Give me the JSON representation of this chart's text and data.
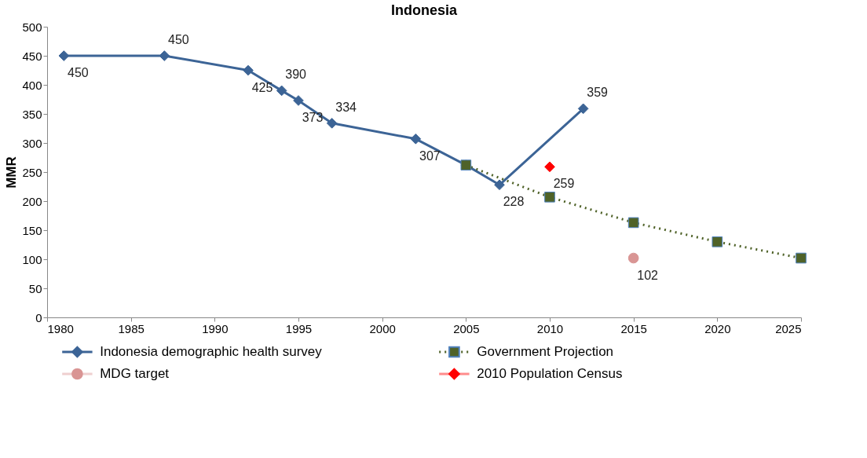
{
  "chart_data": {
    "type": "line",
    "title": "Indonesia",
    "ylabel": "MMR",
    "xlim": [
      1980,
      2025
    ],
    "xticks": [
      1980,
      1985,
      1990,
      1995,
      2000,
      2005,
      2010,
      2015,
      2020,
      2025
    ],
    "ylim": [
      0,
      500
    ],
    "yticks": [
      0,
      50,
      100,
      150,
      200,
      250,
      300,
      350,
      400,
      450,
      500
    ],
    "grid": false,
    "legend": "bottom",
    "series": [
      {
        "name": "Indonesia demographic health survey",
        "color": "#3c6496",
        "marker": "diamond",
        "line_style": "solid",
        "x": [
          1981,
          1987,
          1992,
          1994,
          1995,
          1997,
          2002,
          2005,
          2007,
          2012
        ],
        "values": [
          450,
          450,
          425,
          390,
          373,
          334,
          307,
          262,
          228,
          359
        ],
        "value_labels": [
          "450",
          "450",
          "425",
          "390",
          "373",
          "334",
          "307",
          null,
          "228",
          "359"
        ]
      },
      {
        "name": "Government Projection",
        "color": "#4f6228",
        "marker": "square",
        "line_style": "dotted",
        "x": [
          2005,
          2010,
          2015,
          2020,
          2025
        ],
        "values": [
          262,
          207,
          163,
          130,
          102
        ]
      },
      {
        "name": "MDG target",
        "type": "scatter",
        "color": "#d99594",
        "marker": "circle",
        "x": [
          2015
        ],
        "values": [
          102
        ],
        "value_labels": [
          "102"
        ]
      },
      {
        "name": "2010 Population Census",
        "type": "scatter",
        "color": "#ff0000",
        "marker": "diamond",
        "x": [
          2010
        ],
        "values": [
          259
        ],
        "value_labels": [
          "259"
        ]
      }
    ]
  }
}
